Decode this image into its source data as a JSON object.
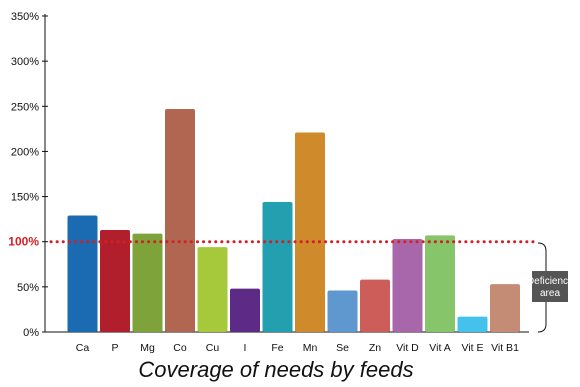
{
  "chart_data": {
    "type": "bar",
    "title": "Coverage of needs by feeds",
    "xlabel": "",
    "ylabel": "",
    "ylim": [
      0,
      350
    ],
    "yticks": [
      "0%",
      "50%",
      "100%",
      "150%",
      "200%",
      "250%",
      "300%",
      "350%"
    ],
    "ytick_values": [
      0,
      50,
      100,
      150,
      200,
      250,
      300,
      350
    ],
    "categories": [
      "Ca",
      "P",
      "Mg",
      "Co",
      "Cu",
      "I",
      "Fe",
      "Mn",
      "Se",
      "Zn",
      "Vit D",
      "Vit A",
      "Vit E",
      "Vit B1"
    ],
    "values": [
      129,
      113,
      109,
      247,
      94,
      48,
      144,
      221,
      46,
      58,
      103,
      107,
      17,
      53
    ],
    "colors": [
      "#1a6bb2",
      "#b11f2d",
      "#7ea33b",
      "#b06650",
      "#a6c93b",
      "#5d2b86",
      "#239faf",
      "#cf8a2c",
      "#5f97cf",
      "#cc5d58",
      "#a867ab",
      "#86c56a",
      "#44c2ec",
      "#c48c74"
    ],
    "reference_line": {
      "value": 100,
      "label": "100%",
      "color": "#d31f26"
    },
    "annotation": {
      "line1": "Deficiency",
      "line2": "area"
    },
    "grid": false
  }
}
